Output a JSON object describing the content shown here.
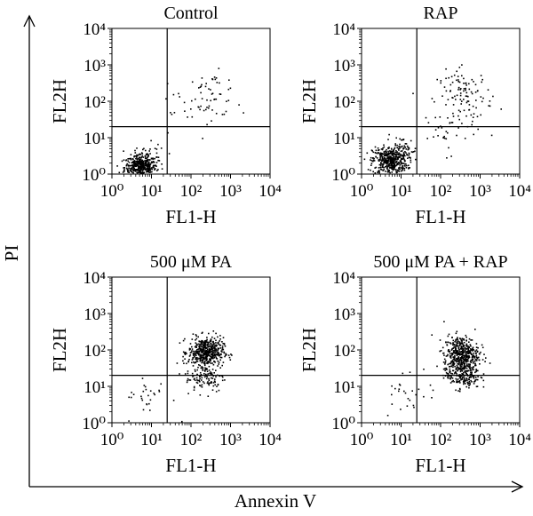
{
  "figure": {
    "y_axis_label": "PI",
    "x_axis_label": "Annexin V"
  },
  "chart_data": [
    {
      "type": "scatter",
      "title": "Control",
      "xlabel": "FL1-H",
      "ylabel": "FL2H",
      "xscale": "log",
      "yscale": "log",
      "xlim": [
        1,
        10000
      ],
      "ylim": [
        1,
        10000
      ],
      "x_tick_labels": [
        "10⁰",
        "10¹",
        "10²",
        "10³",
        "10⁴"
      ],
      "y_tick_labels": [
        "10⁰",
        "10¹",
        "10²",
        "10³",
        "10⁴"
      ],
      "quadrant_gate": {
        "x": 25,
        "y": 20
      },
      "clusters": [
        {
          "center": [
            5,
            1.6
          ],
          "spread": [
            0.2,
            0.16
          ],
          "count": 420
        },
        {
          "center": [
            8,
            2.8
          ],
          "spread": [
            0.22,
            0.2
          ],
          "count": 60
        },
        {
          "center": [
            300,
            160
          ],
          "spread": [
            0.35,
            0.3
          ],
          "count": 55
        },
        {
          "center": [
            60,
            40
          ],
          "spread": [
            0.45,
            0.4
          ],
          "count": 14
        }
      ]
    },
    {
      "type": "scatter",
      "title": "RAP",
      "xlabel": "FL1-H",
      "ylabel": "FL2H",
      "xscale": "log",
      "yscale": "log",
      "xlim": [
        1,
        10000
      ],
      "ylim": [
        1,
        10000
      ],
      "x_tick_labels": [
        "10⁰",
        "10¹",
        "10²",
        "10³",
        "10⁴"
      ],
      "y_tick_labels": [
        "10⁰",
        "10¹",
        "10²",
        "10³",
        "10⁴"
      ],
      "quadrant_gate": {
        "x": 25,
        "y": 20
      },
      "clusters": [
        {
          "center": [
            5,
            2.4
          ],
          "spread": [
            0.22,
            0.2
          ],
          "count": 430
        },
        {
          "center": [
            10,
            4.5
          ],
          "spread": [
            0.2,
            0.2
          ],
          "count": 60
        },
        {
          "center": [
            400,
            150
          ],
          "spread": [
            0.35,
            0.35
          ],
          "count": 110
        },
        {
          "center": [
            150,
            15
          ],
          "spread": [
            0.4,
            0.3
          ],
          "count": 30
        }
      ]
    },
    {
      "type": "scatter",
      "title": "500 μM PA",
      "xlabel": "FL1-H",
      "ylabel": "FL2H",
      "xscale": "log",
      "yscale": "log",
      "xlim": [
        1,
        10000
      ],
      "ylim": [
        1,
        10000
      ],
      "x_tick_labels": [
        "10⁰",
        "10¹",
        "10²",
        "10³",
        "10⁴"
      ],
      "y_tick_labels": [
        "10⁰",
        "10¹",
        "10²",
        "10³",
        "10⁴"
      ],
      "quadrant_gate": {
        "x": 25,
        "y": 20
      },
      "clusters": [
        {
          "center": [
            230,
            90
          ],
          "spread": [
            0.22,
            0.2
          ],
          "count": 480
        },
        {
          "center": [
            220,
            18
          ],
          "spread": [
            0.25,
            0.2
          ],
          "count": 110
        },
        {
          "center": [
            8,
            5
          ],
          "spread": [
            0.3,
            0.3
          ],
          "count": 28
        }
      ]
    },
    {
      "type": "scatter",
      "title": "500 μM PA + RAP",
      "xlabel": "FL1-H",
      "ylabel": "FL2H",
      "xscale": "log",
      "yscale": "log",
      "xlim": [
        1,
        10000
      ],
      "ylim": [
        1,
        10000
      ],
      "x_tick_labels": [
        "10⁰",
        "10¹",
        "10²",
        "10³",
        "10⁴"
      ],
      "y_tick_labels": [
        "10⁰",
        "10¹",
        "10²",
        "10³",
        "10⁴"
      ],
      "quadrant_gate": {
        "x": 25,
        "y": 20
      },
      "clusters": [
        {
          "center": [
            320,
            80
          ],
          "spread": [
            0.22,
            0.25
          ],
          "count": 440
        },
        {
          "center": [
            350,
            22
          ],
          "spread": [
            0.22,
            0.2
          ],
          "count": 200
        },
        {
          "center": [
            15,
            8
          ],
          "spread": [
            0.35,
            0.35
          ],
          "count": 28
        }
      ]
    }
  ]
}
